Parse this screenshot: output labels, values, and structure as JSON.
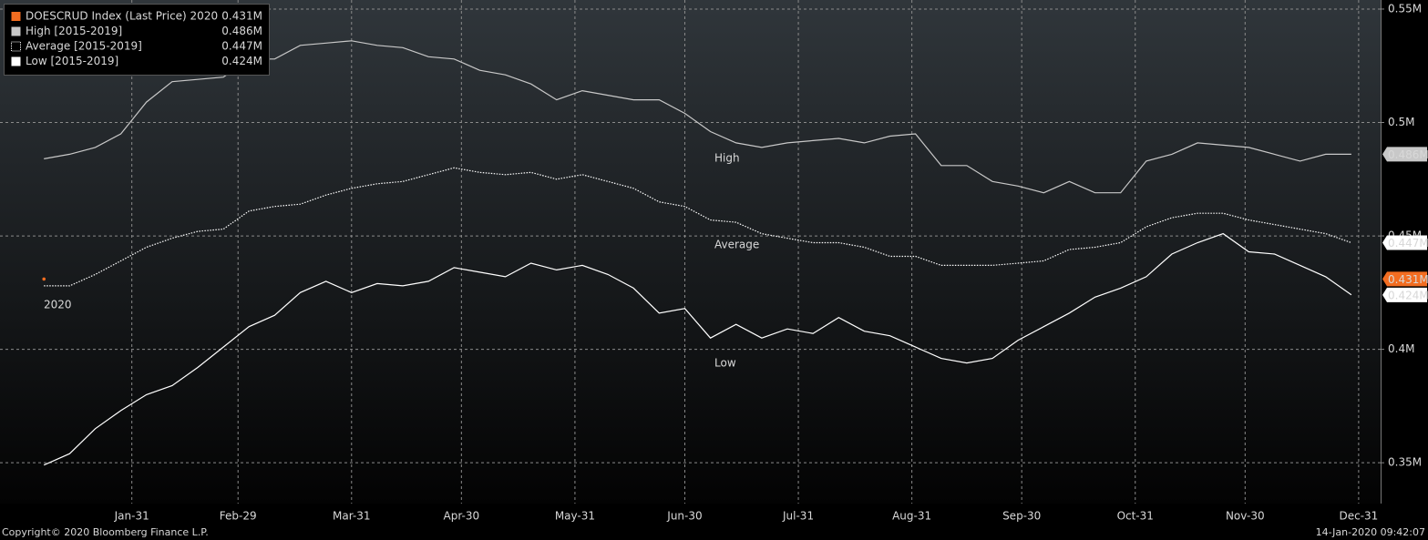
{
  "chart_data": {
    "type": "line",
    "legend": "top-left",
    "grid": true,
    "footer_left": "Copyright© 2020 Bloomberg Finance L.P.",
    "footer_right": "14-Jan-2020 09:42:07",
    "annotations": [
      "2020",
      "High",
      "Average",
      "Low"
    ],
    "xlim": [
      -5,
      372
    ],
    "xticks": [
      {
        "value": 31,
        "label": "Jan-31"
      },
      {
        "value": 60,
        "label": "Feb-29"
      },
      {
        "value": 91,
        "label": "Mar-31"
      },
      {
        "value": 121,
        "label": "Apr-30"
      },
      {
        "value": 152,
        "label": "May-31"
      },
      {
        "value": 182,
        "label": "Jun-30"
      },
      {
        "value": 213,
        "label": "Jul-31"
      },
      {
        "value": 244,
        "label": "Aug-31"
      },
      {
        "value": 274,
        "label": "Sep-30"
      },
      {
        "value": 305,
        "label": "Oct-31"
      },
      {
        "value": 335,
        "label": "Nov-30"
      },
      {
        "value": 366,
        "label": "Dec-31"
      }
    ],
    "ylim": [
      0.332,
      0.554
    ],
    "yticks": [
      {
        "value": 0.35,
        "label": "0.35M"
      },
      {
        "value": 0.4,
        "label": "0.4M"
      },
      {
        "value": 0.45,
        "label": "0.45M"
      },
      {
        "value": 0.5,
        "label": "0.5M"
      },
      {
        "value": 0.55,
        "label": "0.55M"
      }
    ],
    "x": [
      7,
      14,
      21,
      28,
      35,
      42,
      49,
      56,
      63,
      70,
      77,
      84,
      91,
      98,
      105,
      112,
      119,
      126,
      133,
      140,
      147,
      154,
      161,
      168,
      175,
      182,
      189,
      196,
      203,
      210,
      217,
      224,
      231,
      238,
      245,
      252,
      259,
      266,
      273,
      280,
      287,
      294,
      301,
      308,
      315,
      322,
      329,
      336,
      343,
      350,
      357,
      364
    ],
    "series": [
      {
        "name": "DOESCRUD Index (Last Price) 2020",
        "color": "#f26d21",
        "style": "point",
        "x": [
          7
        ],
        "values": [
          0.431
        ],
        "value_labels": [
          "0.431M"
        ]
      },
      {
        "name": "High [2015-2019]",
        "color": "#c8c8c8",
        "style": "solid",
        "values": [
          0.484,
          0.486,
          0.489,
          0.495,
          0.509,
          0.518,
          0.519,
          0.52,
          0.528,
          0.528,
          0.534,
          0.535,
          0.536,
          0.534,
          0.533,
          0.529,
          0.528,
          0.523,
          0.521,
          0.517,
          0.51,
          0.514,
          0.512,
          0.51,
          0.51,
          0.504,
          0.496,
          0.491,
          0.489,
          0.491,
          0.492,
          0.493,
          0.491,
          0.494,
          0.495,
          0.481,
          0.481,
          0.474,
          0.472,
          0.469,
          0.474,
          0.469,
          0.469,
          0.483,
          0.486,
          0.491,
          0.49,
          0.489,
          0.486,
          0.483,
          0.486,
          0.486
        ],
        "value_labels": [
          null,
          null,
          null,
          null,
          null,
          null,
          null,
          null,
          null,
          null,
          null,
          null,
          null,
          null,
          null,
          null,
          null,
          null,
          null,
          null,
          null,
          null,
          null,
          null,
          null,
          null,
          null,
          null,
          null,
          null,
          null,
          null,
          null,
          null,
          null,
          null,
          null,
          null,
          null,
          null,
          null,
          null,
          null,
          null,
          null,
          null,
          null,
          null,
          null,
          null,
          null,
          "0.486M"
        ]
      },
      {
        "name": "Average [2015-2019]",
        "color": "#ffffff",
        "style": "dotted",
        "values": [
          0.428,
          0.428,
          0.433,
          0.439,
          0.445,
          0.449,
          0.452,
          0.453,
          0.461,
          0.463,
          0.464,
          0.468,
          0.471,
          0.473,
          0.474,
          0.477,
          0.48,
          0.478,
          0.477,
          0.478,
          0.475,
          0.477,
          0.474,
          0.471,
          0.465,
          0.463,
          0.457,
          0.456,
          0.451,
          0.449,
          0.447,
          0.447,
          0.445,
          0.441,
          0.441,
          0.437,
          0.437,
          0.437,
          0.438,
          0.439,
          0.444,
          0.445,
          0.447,
          0.454,
          0.458,
          0.46,
          0.46,
          0.457,
          0.455,
          0.453,
          0.451,
          0.447
        ],
        "value_labels": [
          null,
          null,
          null,
          null,
          null,
          null,
          null,
          null,
          null,
          null,
          null,
          null,
          null,
          null,
          null,
          null,
          null,
          null,
          null,
          null,
          null,
          null,
          null,
          null,
          null,
          null,
          null,
          null,
          null,
          null,
          null,
          null,
          null,
          null,
          null,
          null,
          null,
          null,
          null,
          null,
          null,
          null,
          null,
          null,
          null,
          null,
          null,
          null,
          null,
          null,
          null,
          "0.447M"
        ]
      },
      {
        "name": "Low [2015-2019]",
        "color": "#ffffff",
        "style": "solid",
        "values": [
          0.349,
          0.354,
          0.365,
          0.373,
          0.38,
          0.384,
          0.392,
          0.401,
          0.41,
          0.415,
          0.425,
          0.43,
          0.425,
          0.429,
          0.428,
          0.43,
          0.436,
          0.434,
          0.432,
          0.438,
          0.435,
          0.437,
          0.433,
          0.427,
          0.416,
          0.418,
          0.405,
          0.411,
          0.405,
          0.409,
          0.407,
          0.414,
          0.408,
          0.406,
          0.401,
          0.396,
          0.394,
          0.396,
          0.404,
          0.41,
          0.416,
          0.423,
          0.427,
          0.432,
          0.442,
          0.447,
          0.451,
          0.443,
          0.442,
          0.437,
          0.432,
          0.424
        ],
        "value_labels": [
          null,
          null,
          null,
          null,
          null,
          null,
          null,
          null,
          null,
          null,
          null,
          null,
          null,
          null,
          null,
          null,
          null,
          null,
          null,
          null,
          null,
          null,
          null,
          null,
          null,
          null,
          null,
          null,
          null,
          null,
          null,
          null,
          null,
          null,
          null,
          null,
          null,
          null,
          null,
          null,
          null,
          null,
          null,
          null,
          null,
          null,
          null,
          null,
          null,
          null,
          null,
          "0.424M"
        ]
      }
    ]
  }
}
